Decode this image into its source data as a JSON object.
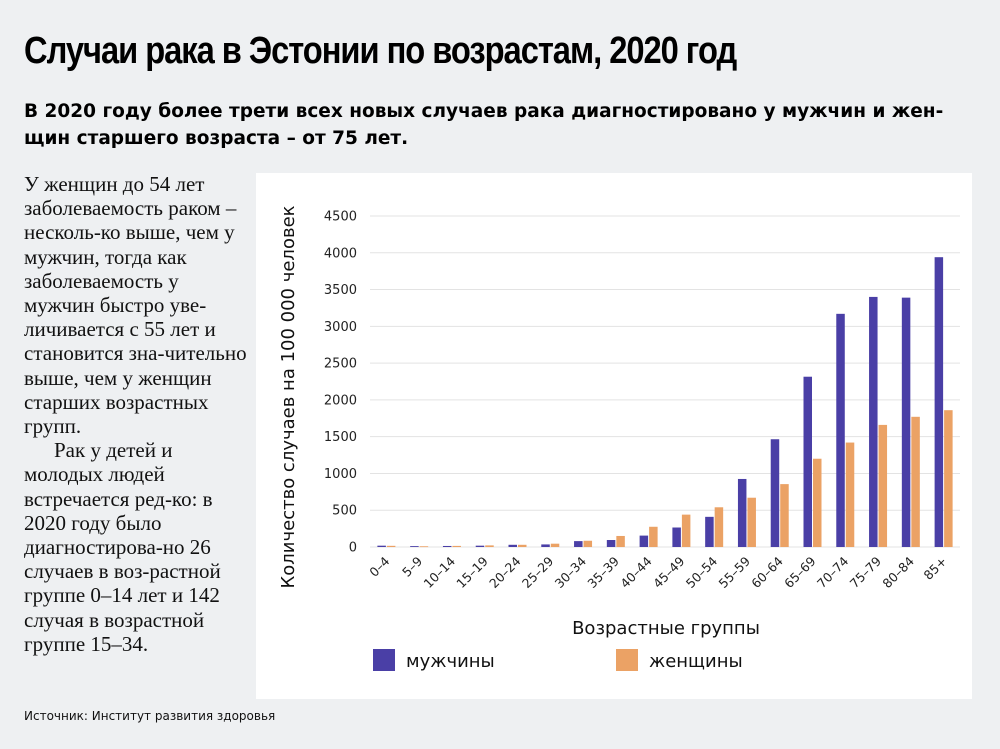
{
  "header": {
    "title": "Случаи рака в Эстонии по возрастам, 2020 год",
    "subtitle": "В 2020 году более трети всех новых случаев рака диагностировано у мужчин и жен-щин старшего возраста – от 75 лет."
  },
  "sidebar": {
    "paragraph1": "У женщин до 54 лет заболеваемость раком – несколь-ко выше, чем у мужчин, тогда как заболеваемость у мужчин быстро уве-личивается с 55 лет и становится зна-чительно выше, чем у женщин старших возрастных групп.",
    "paragraph2": "Рак у детей и молодых людей встречается ред-ко: в 2020 году было диагностирова-но 26 случаев в воз-растной группе 0–14 лет и 142 случая в возрастной группе 15–34."
  },
  "source": "Источник: Институт развития здоровья",
  "colors": {
    "men": "#4a3fa6",
    "women": "#eba265",
    "grid": "#e3e3e3"
  },
  "chart_data": {
    "type": "bar",
    "xlabel": "Возрастные группы",
    "ylabel": "Количество случаев на 100 000 человек",
    "ylim": [
      0,
      4500
    ],
    "yticks": [
      "0",
      "500",
      "1000",
      "1500",
      "2000",
      "2500",
      "3000",
      "3500",
      "4000",
      "4500"
    ],
    "grid": true,
    "legend_position": "bottom",
    "categories": [
      "0–4",
      "5–9",
      "10–14",
      "15–19",
      "20–24",
      "25–29",
      "30–34",
      "35–39",
      "40–44",
      "45–49",
      "50–54",
      "55–59",
      "60–64",
      "65–69",
      "70–74",
      "75–79",
      "80–84",
      "85+"
    ],
    "series": [
      {
        "name": "мужчины",
        "values": [
          18,
          12,
          14,
          18,
          30,
          35,
          80,
          95,
          155,
          265,
          410,
          925,
          1465,
          2315,
          3170,
          3400,
          3390,
          3940
        ]
      },
      {
        "name": "женщины",
        "values": [
          16,
          10,
          15,
          22,
          30,
          45,
          85,
          150,
          275,
          440,
          540,
          670,
          855,
          1200,
          1420,
          1660,
          1770,
          1860
        ]
      }
    ]
  }
}
